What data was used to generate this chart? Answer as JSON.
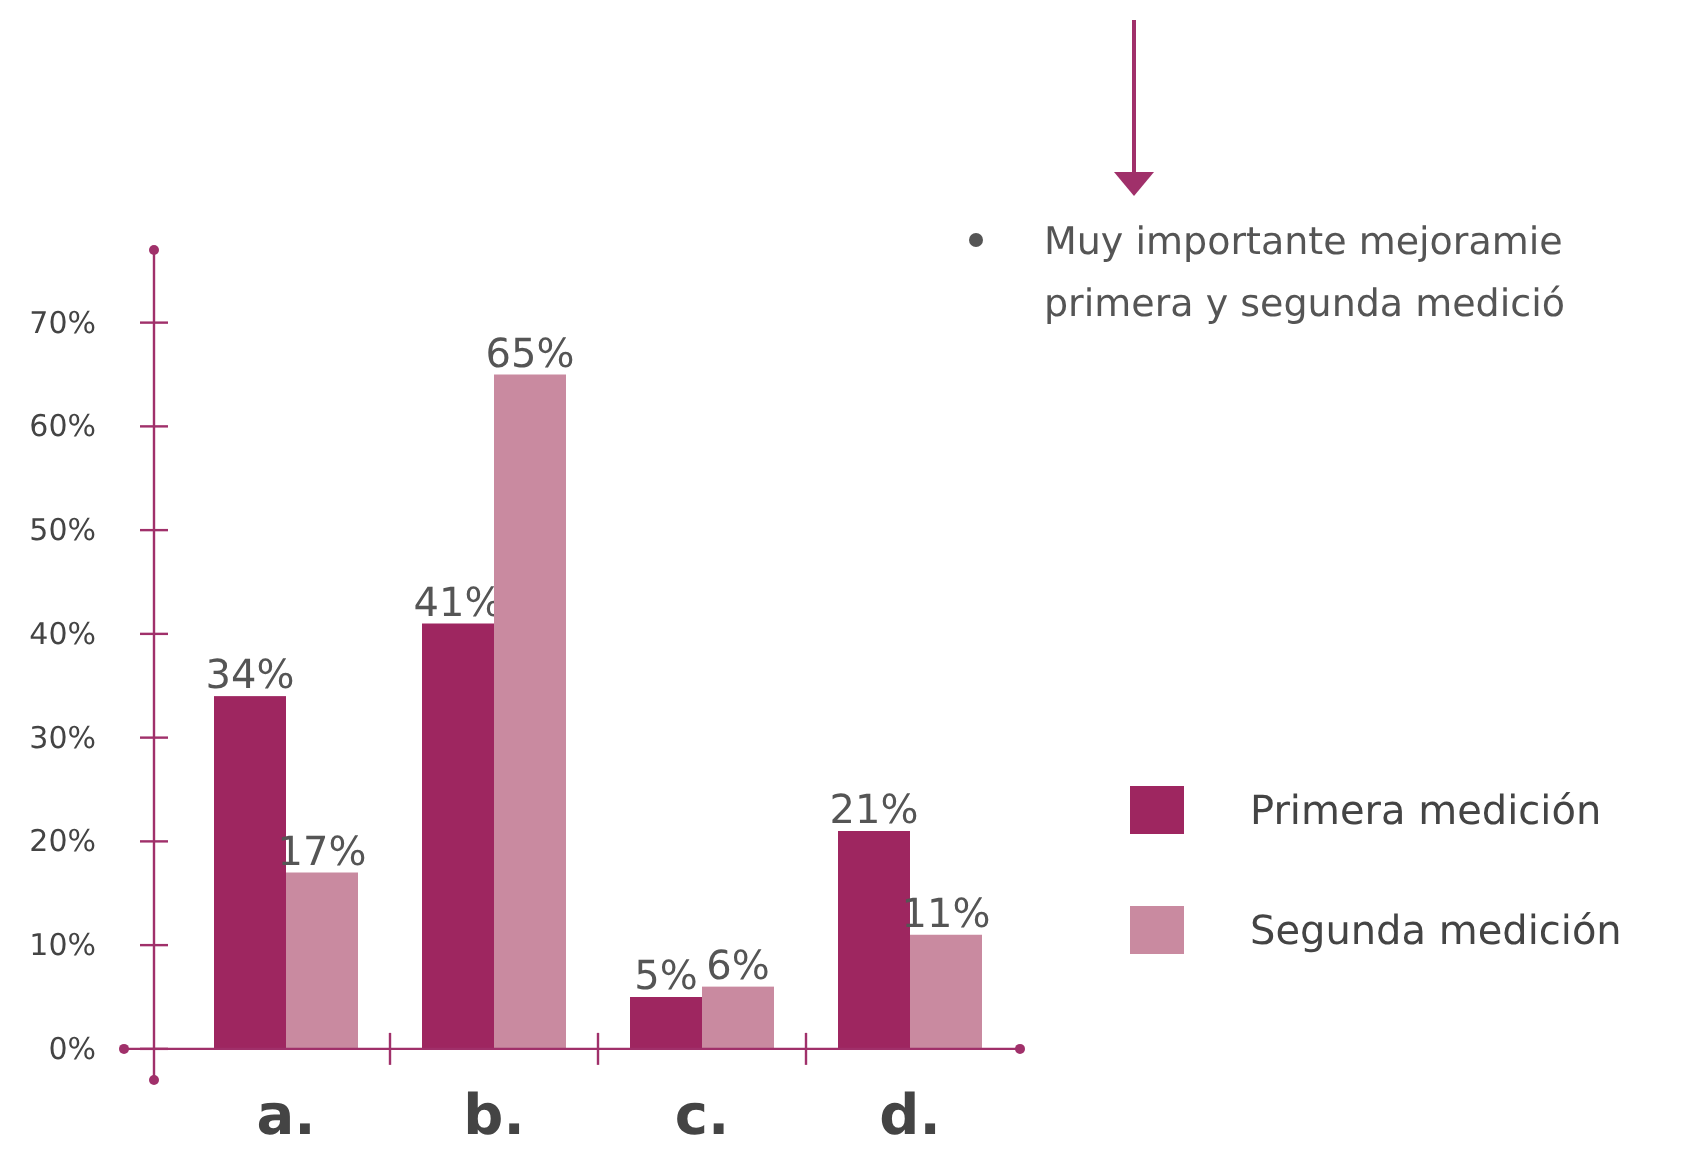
{
  "chart_data": {
    "type": "bar",
    "categories": [
      "a.",
      "b.",
      "c.",
      "d."
    ],
    "series": [
      {
        "name": "Primera medición",
        "color": "#9e2660",
        "values": [
          34,
          41,
          5,
          21
        ],
        "value_labels": [
          "34%",
          "41%",
          "5%",
          "21%"
        ]
      },
      {
        "name": "Segunda medición",
        "color": "#c98aa0",
        "values": [
          17,
          65,
          6,
          11
        ],
        "value_labels": [
          "17%",
          "65%",
          "6%",
          "11%"
        ]
      }
    ],
    "ylim": [
      -3,
      77
    ],
    "yticks": [
      {
        "value": 0,
        "label": "0%"
      },
      {
        "value": 10,
        "label": "10%"
      },
      {
        "value": 20,
        "label": "20%"
      },
      {
        "value": 30,
        "label": "30%"
      },
      {
        "value": 40,
        "label": "40%"
      },
      {
        "value": 50,
        "label": "50%"
      },
      {
        "value": 60,
        "label": "60%"
      },
      {
        "value": 70,
        "label": "70%"
      }
    ],
    "legend": "right",
    "grid": false,
    "annotations": [
      "Muy importante mejoramie",
      "primera y segunda medició"
    ]
  }
}
